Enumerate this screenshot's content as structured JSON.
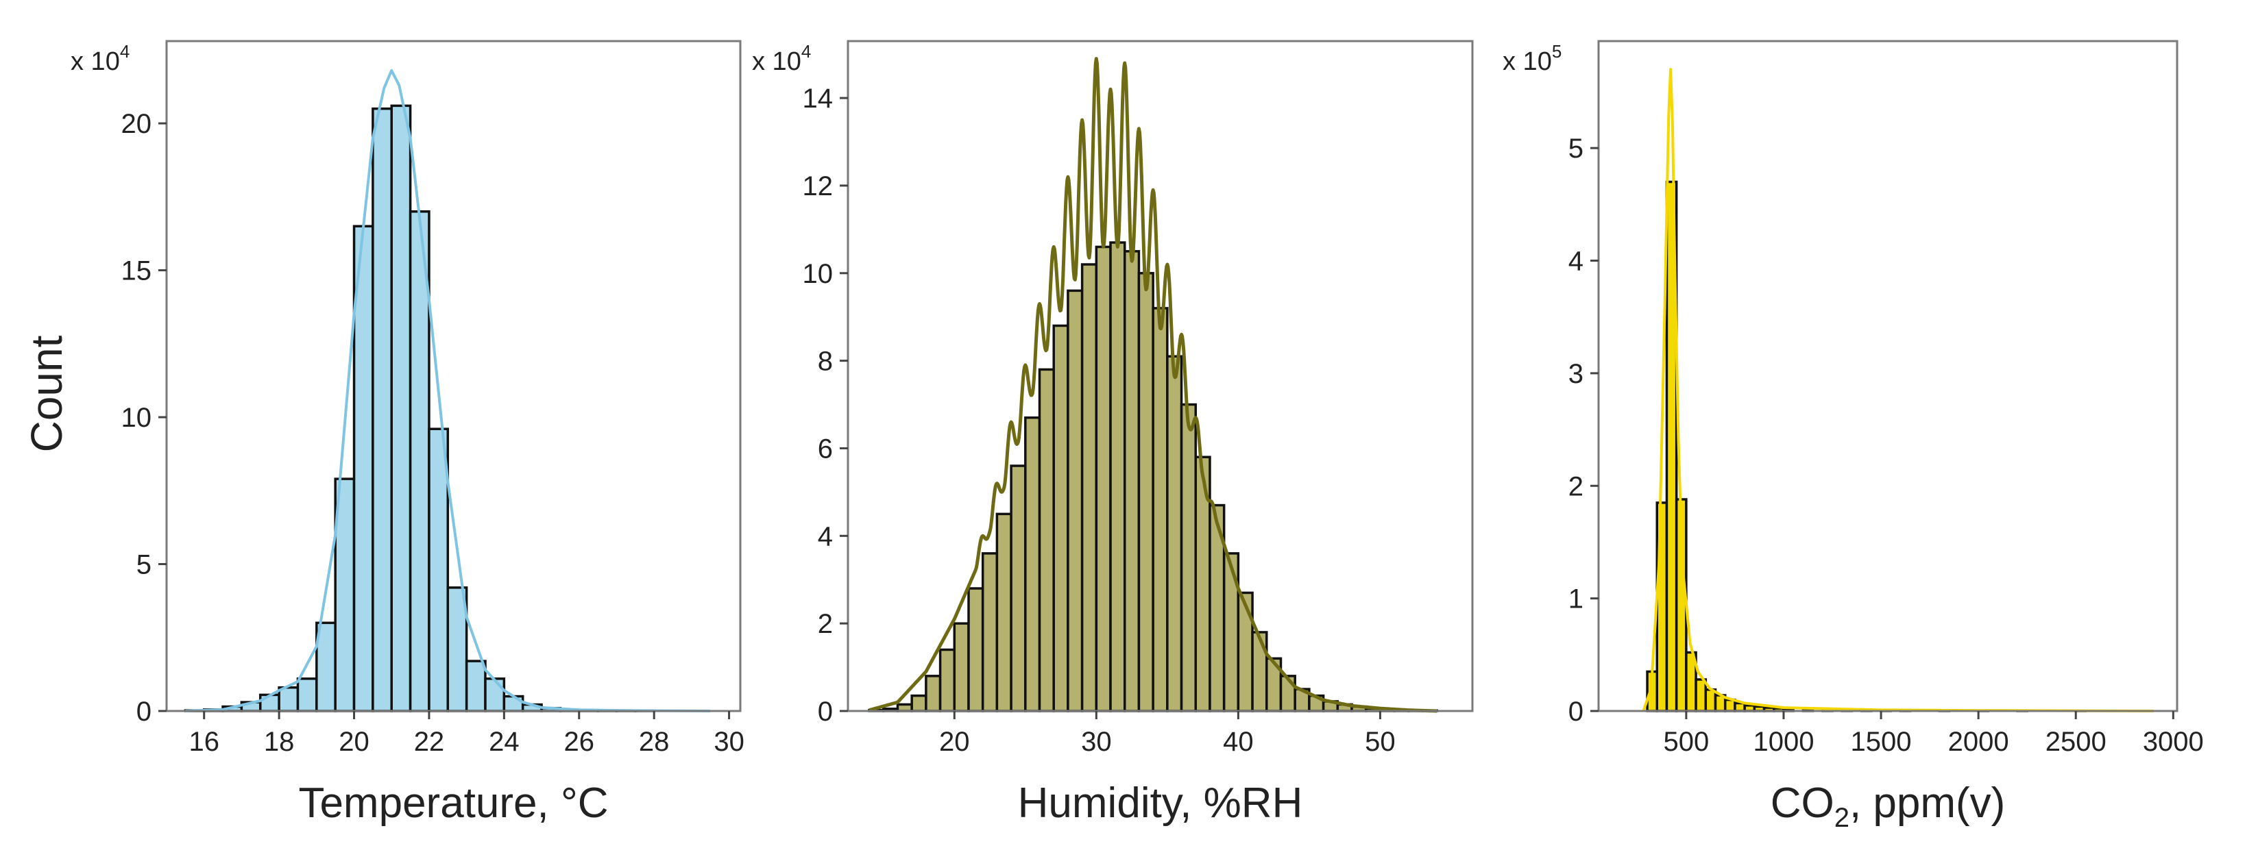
{
  "figure": {
    "ylabel": "Count"
  },
  "chart_data": [
    {
      "type": "bar",
      "xlabel": "Temperature, °C",
      "ylabel": "Count",
      "multiplier_base": "x 10",
      "multiplier_exp": "4",
      "xlim": [
        15.0,
        30.3
      ],
      "ylim": [
        0,
        22.8
      ],
      "xticks": [
        16,
        18,
        20,
        22,
        24,
        26,
        28,
        30
      ],
      "yticks": [
        0,
        5,
        10,
        15,
        20
      ],
      "bar_color": "#a8d8ec",
      "edge_color": "#111111",
      "kde_color": "#7fc4e2",
      "bin_width": 0.5,
      "bins_start": [
        15.5,
        16.0,
        16.5,
        17.0,
        17.5,
        18.0,
        18.5,
        19.0,
        19.5,
        20.0,
        20.5,
        21.0,
        21.5,
        22.0,
        22.5,
        23.0,
        23.5,
        24.0,
        24.5,
        25.0,
        25.5,
        26.0,
        26.5,
        27.0,
        27.5,
        28.0,
        28.5,
        29.0
      ],
      "values": [
        0.02,
        0.05,
        0.15,
        0.3,
        0.55,
        0.8,
        1.1,
        3.0,
        7.9,
        16.5,
        20.5,
        20.6,
        17.0,
        9.6,
        4.2,
        1.7,
        1.1,
        0.5,
        0.22,
        0.1,
        0.04,
        0.03,
        0.02,
        0.01,
        0.01,
        0.0,
        0.0,
        0.0
      ],
      "kde_x": [
        15.5,
        16.5,
        17.5,
        18.0,
        18.5,
        19.0,
        19.5,
        20.0,
        20.5,
        20.8,
        21.0,
        21.2,
        21.5,
        22.0,
        22.5,
        23.0,
        23.5,
        24.0,
        24.5,
        25.0,
        26.0,
        27.0,
        28.0,
        29.5
      ],
      "kde_y": [
        0.0,
        0.05,
        0.35,
        0.7,
        1.0,
        2.2,
        6.0,
        13.5,
        19.5,
        21.2,
        21.8,
        21.3,
        19.5,
        14.0,
        7.8,
        3.2,
        1.4,
        0.7,
        0.3,
        0.12,
        0.04,
        0.02,
        0.01,
        0.0
      ]
    },
    {
      "type": "bar",
      "xlabel": "Humidity, %RH",
      "multiplier_base": "x 10",
      "multiplier_exp": "4",
      "xlim": [
        12.5,
        56.5
      ],
      "ylim": [
        0,
        15.3
      ],
      "xticks": [
        20,
        30,
        40,
        50
      ],
      "yticks": [
        0,
        2,
        4,
        6,
        8,
        10,
        12,
        14
      ],
      "bar_color": "#b5b270",
      "edge_color": "#111111",
      "kde_color": "#6e6b14",
      "bin_width": 1,
      "bins_start": [
        14,
        15,
        16,
        17,
        18,
        19,
        20,
        21,
        22,
        23,
        24,
        25,
        26,
        27,
        28,
        29,
        30,
        31,
        32,
        33,
        34,
        35,
        36,
        37,
        38,
        39,
        40,
        41,
        42,
        43,
        44,
        45,
        46,
        47,
        48,
        49,
        50,
        51,
        52,
        53,
        54
      ],
      "values": [
        0.02,
        0.05,
        0.15,
        0.35,
        0.8,
        1.4,
        2.0,
        2.8,
        3.6,
        4.5,
        5.6,
        6.7,
        7.8,
        8.8,
        9.6,
        10.2,
        10.6,
        10.7,
        10.5,
        10.0,
        9.2,
        8.1,
        7.0,
        5.8,
        4.7,
        3.6,
        2.7,
        1.8,
        1.2,
        0.8,
        0.5,
        0.35,
        0.22,
        0.15,
        0.1,
        0.06,
        0.04,
        0.02,
        0.01,
        0.01,
        0.0
      ],
      "kde_x": [
        14,
        16,
        18,
        20,
        22,
        24,
        26,
        28,
        30,
        32,
        34,
        36,
        38,
        40,
        42,
        44,
        46,
        48,
        50,
        52,
        54
      ],
      "kde_y": [
        0.02,
        0.2,
        0.9,
        2.1,
        3.6,
        5.6,
        7.8,
        9.6,
        10.6,
        10.6,
        9.3,
        7.1,
        4.8,
        2.8,
        1.3,
        0.55,
        0.25,
        0.12,
        0.06,
        0.02,
        0.0
      ],
      "kde_peaks_x": [
        22,
        23,
        24,
        25,
        26,
        27,
        28,
        29,
        30,
        31,
        32,
        33,
        34,
        35,
        36,
        37,
        38
      ],
      "kde_peaks_y": [
        4.0,
        5.2,
        6.6,
        7.9,
        9.3,
        10.6,
        12.2,
        13.5,
        14.9,
        14.2,
        14.8,
        13.3,
        11.9,
        10.2,
        8.6,
        6.7,
        4.8
      ]
    },
    {
      "type": "bar",
      "xlabel": "CO₂, ppm(v)",
      "xlabel_main": "CO",
      "xlabel_sub": "2",
      "xlabel_rest": ", ppm(v)",
      "multiplier_base": "x 10",
      "multiplier_exp": "5",
      "xlim": [
        50,
        3020
      ],
      "ylim": [
        0,
        5.95
      ],
      "xticks": [
        500,
        1000,
        1500,
        2000,
        2500,
        3000
      ],
      "yticks": [
        0,
        1,
        2,
        3,
        4,
        5
      ],
      "bar_color": "#f2da00",
      "edge_color": "#111111",
      "kde_color": "#f5d800",
      "bin_width": 50,
      "bins_start": [
        300,
        350,
        400,
        450,
        500,
        550,
        600,
        650,
        700,
        750,
        800,
        850,
        900,
        950,
        1000,
        1100,
        1200,
        1300,
        1400,
        1500,
        1600,
        1800,
        2000,
        2200,
        2500,
        2800
      ],
      "values": [
        0.35,
        1.85,
        4.7,
        1.88,
        0.52,
        0.28,
        0.19,
        0.14,
        0.1,
        0.07,
        0.05,
        0.04,
        0.03,
        0.025,
        0.02,
        0.015,
        0.012,
        0.01,
        0.008,
        0.006,
        0.005,
        0.004,
        0.003,
        0.002,
        0.001,
        0.0
      ],
      "kde_x": [
        280,
        320,
        360,
        390,
        410,
        420,
        430,
        440,
        460,
        480,
        520,
        560,
        620,
        700,
        800,
        1000,
        1500,
        2000,
        2900
      ],
      "kde_y": [
        0.0,
        0.2,
        1.3,
        3.6,
        5.3,
        5.7,
        5.2,
        4.1,
        2.4,
        1.3,
        0.6,
        0.35,
        0.2,
        0.12,
        0.07,
        0.03,
        0.01,
        0.005,
        0.0
      ]
    }
  ]
}
